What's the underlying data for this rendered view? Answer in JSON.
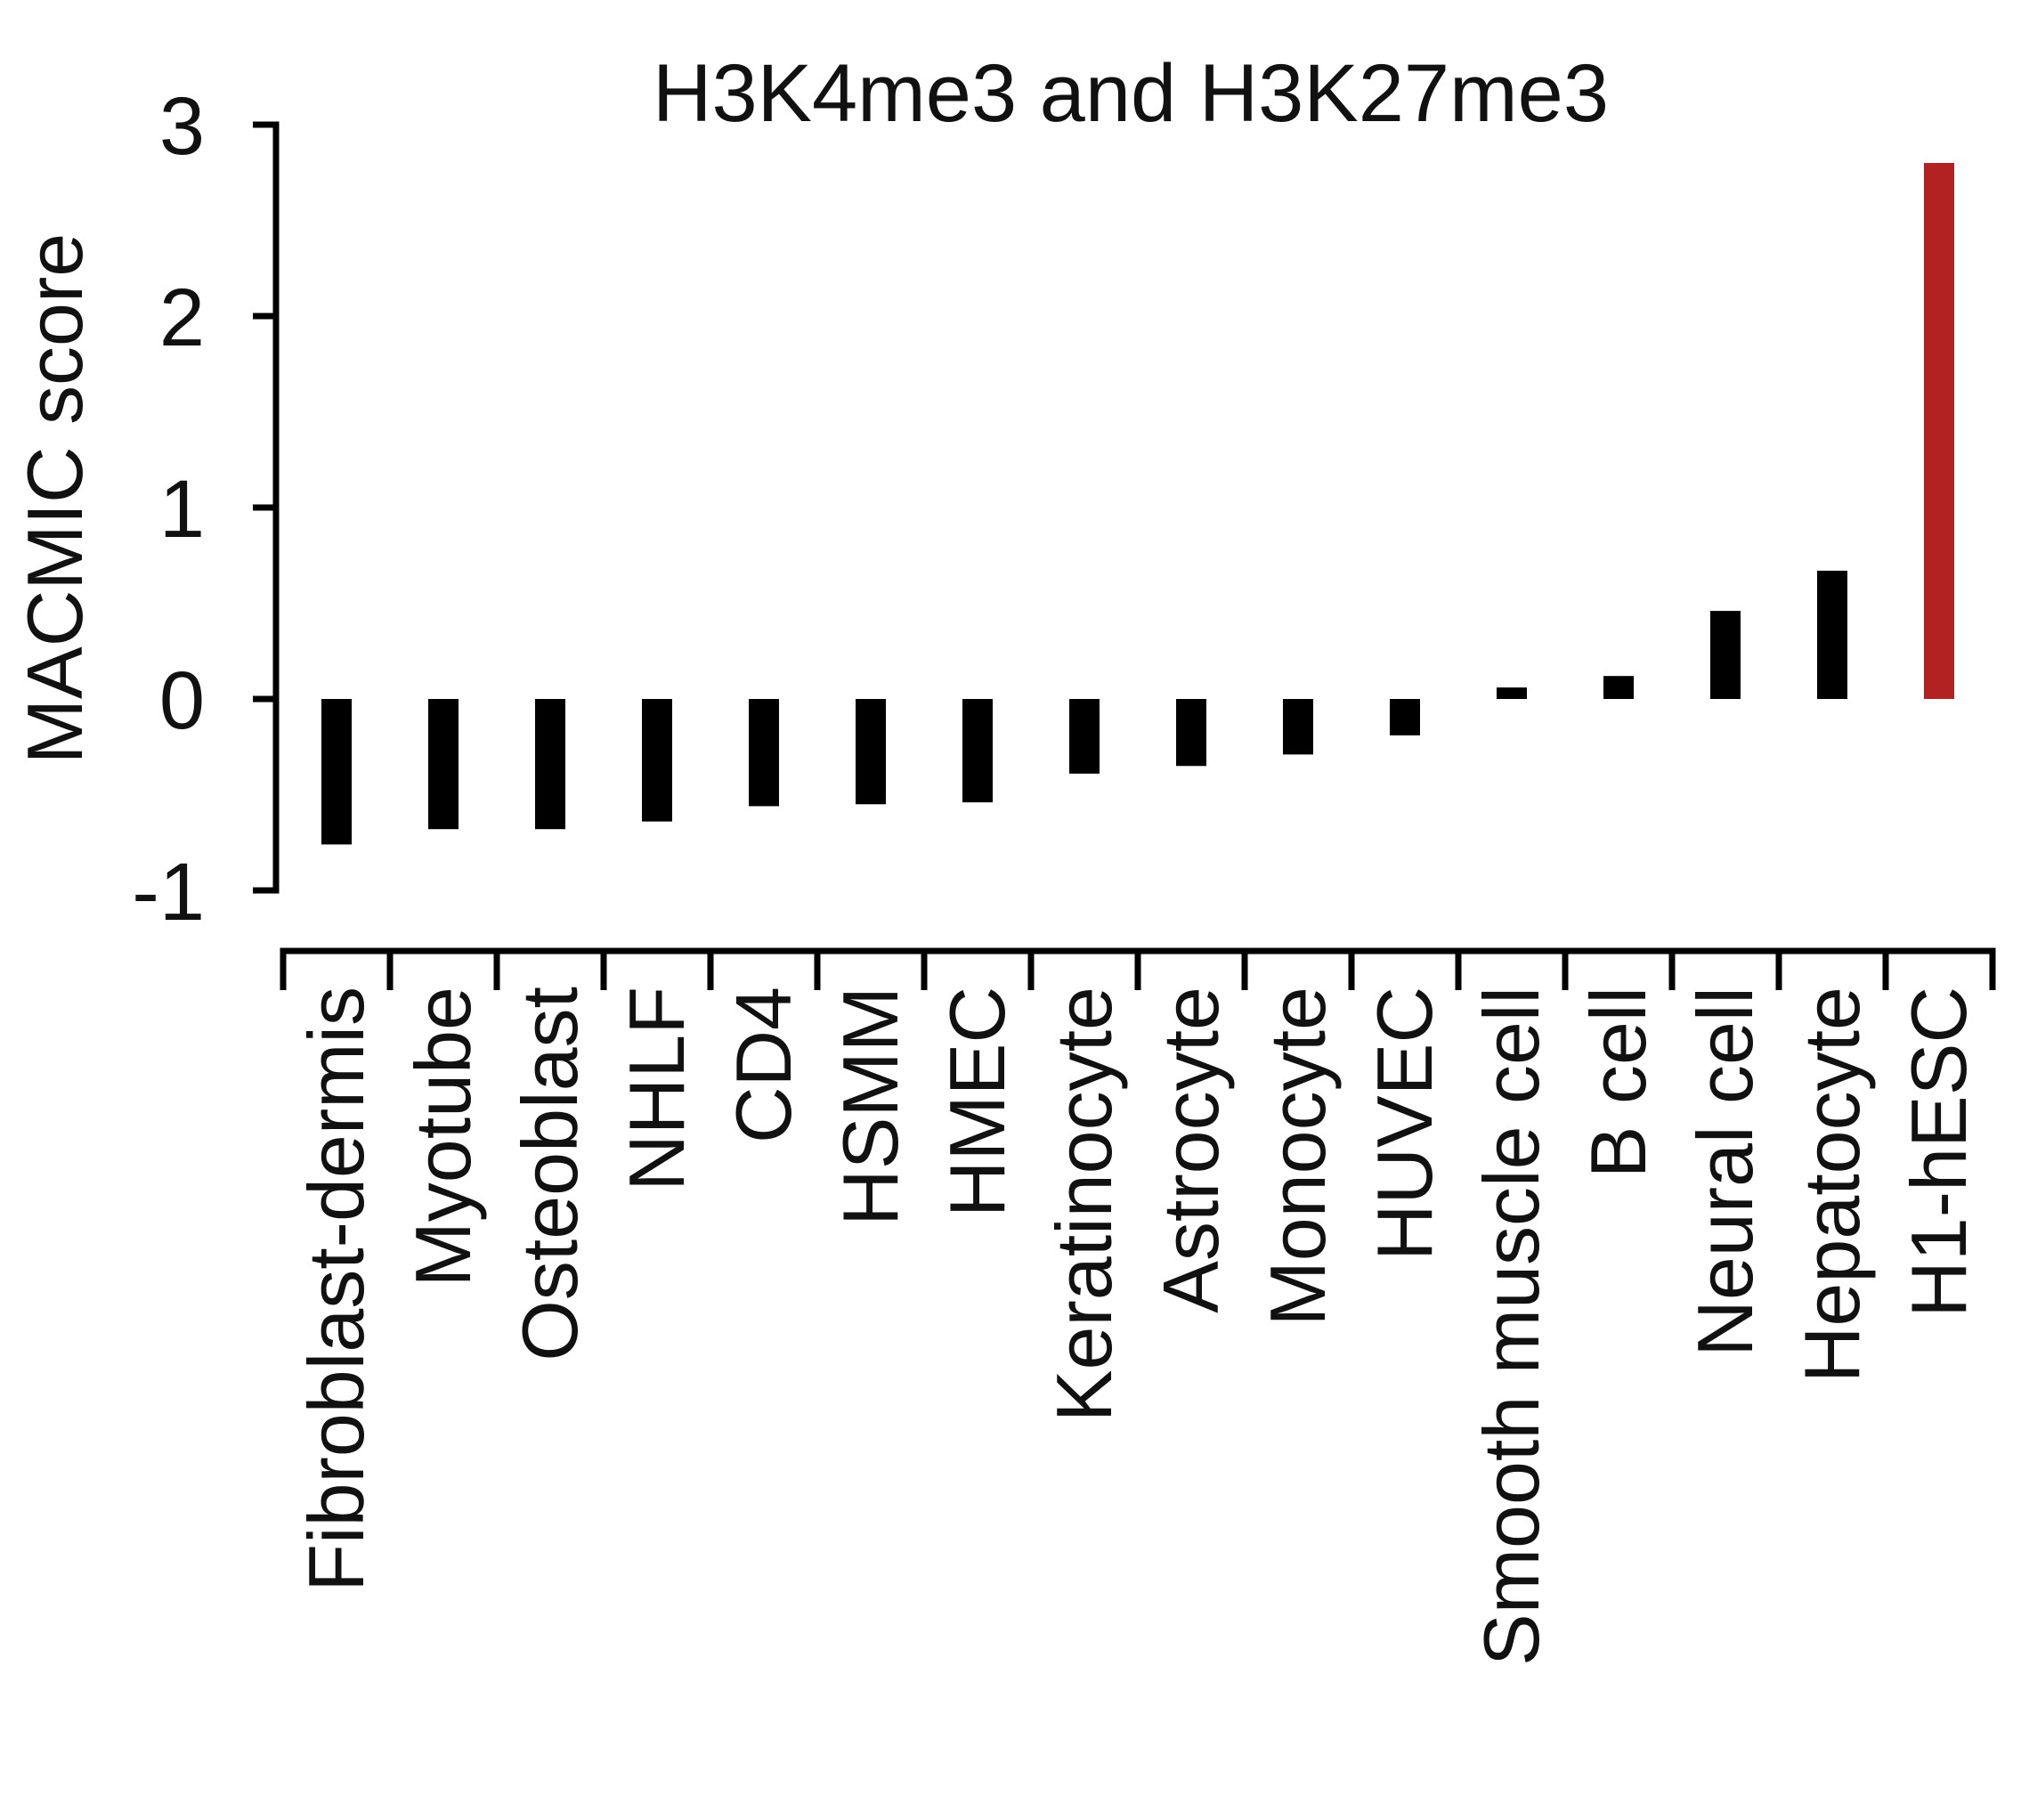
{
  "chart_data": {
    "type": "bar",
    "title": "H3K4me3 and H3K27me3",
    "xlabel": "",
    "ylabel": "MACMIC score",
    "ylim": [
      -1,
      3
    ],
    "yticks": [
      {
        "value": -1,
        "label": "-1"
      },
      {
        "value": 0,
        "label": "0"
      },
      {
        "value": 1,
        "label": "1"
      },
      {
        "value": 2,
        "label": "2"
      },
      {
        "value": 3,
        "label": "3"
      }
    ],
    "grid": false,
    "categories": [
      "Fibroblast-dermis",
      "Myotube",
      "Osteoblast",
      "NHLF",
      "CD4",
      "HSMM",
      "HMEC",
      "Keratinocyte",
      "Astrocyte",
      "Monocyte",
      "HUVEC",
      "Smooth muscle cell",
      "B cell",
      "Neural cell",
      "Hepatocyte",
      "H1-hESC"
    ],
    "values": [
      -0.76,
      -0.68,
      -0.68,
      -0.64,
      -0.56,
      -0.55,
      -0.54,
      -0.39,
      -0.35,
      -0.29,
      -0.19,
      0.06,
      0.12,
      0.46,
      0.67,
      2.8
    ],
    "colors": {
      "default": "#000000",
      "highlight": "#b22222",
      "axis": "#000000"
    },
    "highlight_category": "H1-hESC"
  }
}
